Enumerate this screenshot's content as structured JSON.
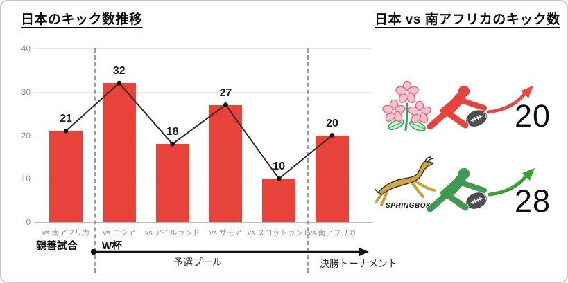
{
  "left_panel": {
    "title": "日本のキック数推移"
  },
  "right_panel": {
    "title": "日本 vs 南アフリカのキック数",
    "rows": [
      {
        "team": "japan",
        "logo": "japan-rugby-cherry-blossom-logo",
        "kicks": "20",
        "accent": "#e8433b"
      },
      {
        "team": "south-africa",
        "logo": "springbok-logo",
        "logo_caption": "SPRINGBOK",
        "kicks": "28",
        "accent": "#3e9b4f"
      }
    ]
  },
  "chart_data": {
    "type": "bar",
    "title": "日本のキック数推移",
    "categories": [
      "vs 南アフリカ",
      "vs ロシア",
      "vs アイルランド",
      "vs サモア",
      "vs スコットランド",
      "vs 南アフリカ"
    ],
    "values": [
      21,
      32,
      18,
      27,
      10,
      20
    ],
    "line_overlay": {
      "type": "line",
      "values": [
        21,
        32,
        18,
        27,
        10,
        20
      ]
    },
    "ylim": [
      0,
      40
    ],
    "yticks": [
      0,
      10,
      20,
      30,
      40
    ],
    "grid": true,
    "legend": "none",
    "bar_color": "#e8433b",
    "line_color": "#2b2b2b",
    "dot_color": "#111111",
    "tick_label_color": "#8d8d8d",
    "phase_dividers_after_category": [
      0,
      4
    ],
    "timeline": {
      "phase1_label": "親善試合",
      "phase2_label": "W杯",
      "pool_label": "予選プール",
      "knockout_label": "決勝トーナメント"
    }
  }
}
